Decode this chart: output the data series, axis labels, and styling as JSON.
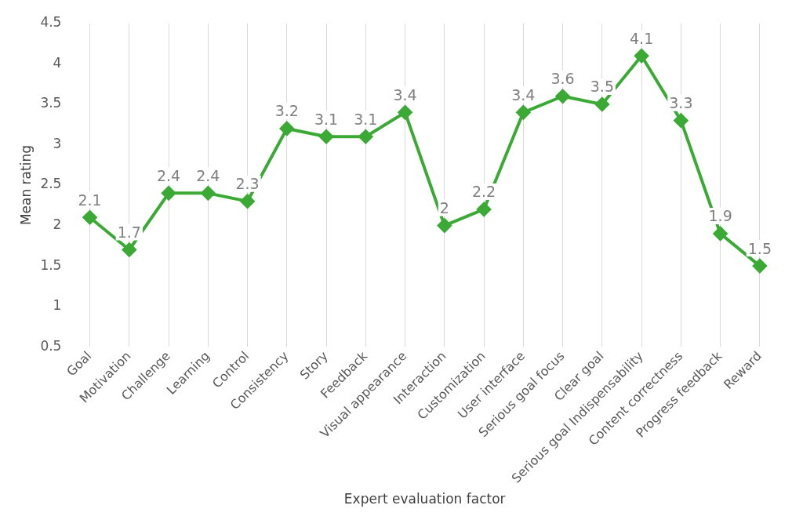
{
  "chart_data": {
    "type": "line",
    "xlabel": "Expert evaluation factor",
    "ylabel": "Mean rating",
    "categories": [
      "Goal",
      "Motivation",
      "Challenge",
      "Learning",
      "Control",
      "Consistency",
      "Story",
      "Feedback",
      "Visual appearance",
      "Interaction",
      "Customization",
      "User interface",
      "Serious goal focus",
      "Clear goal",
      "Serious goal Indispensability",
      "Content correctness",
      "Progress feedback",
      "Reward"
    ],
    "series": [
      {
        "color": "#3aaa35",
        "values": [
          2.1,
          1.7,
          2.4,
          2.4,
          2.3,
          3.2,
          3.1,
          3.1,
          3.4,
          2,
          2.2,
          3.4,
          3.6,
          3.5,
          4.1,
          3.3,
          1.9,
          1.5
        ]
      }
    ],
    "ylim": [
      0.5,
      4.5
    ],
    "yticks": [
      0.5,
      1,
      1.5,
      2,
      2.5,
      3,
      3.5,
      4,
      4.5
    ],
    "grid": "x",
    "legend": false,
    "marker": "diamond",
    "line_style": "solid",
    "data_labels": true
  }
}
